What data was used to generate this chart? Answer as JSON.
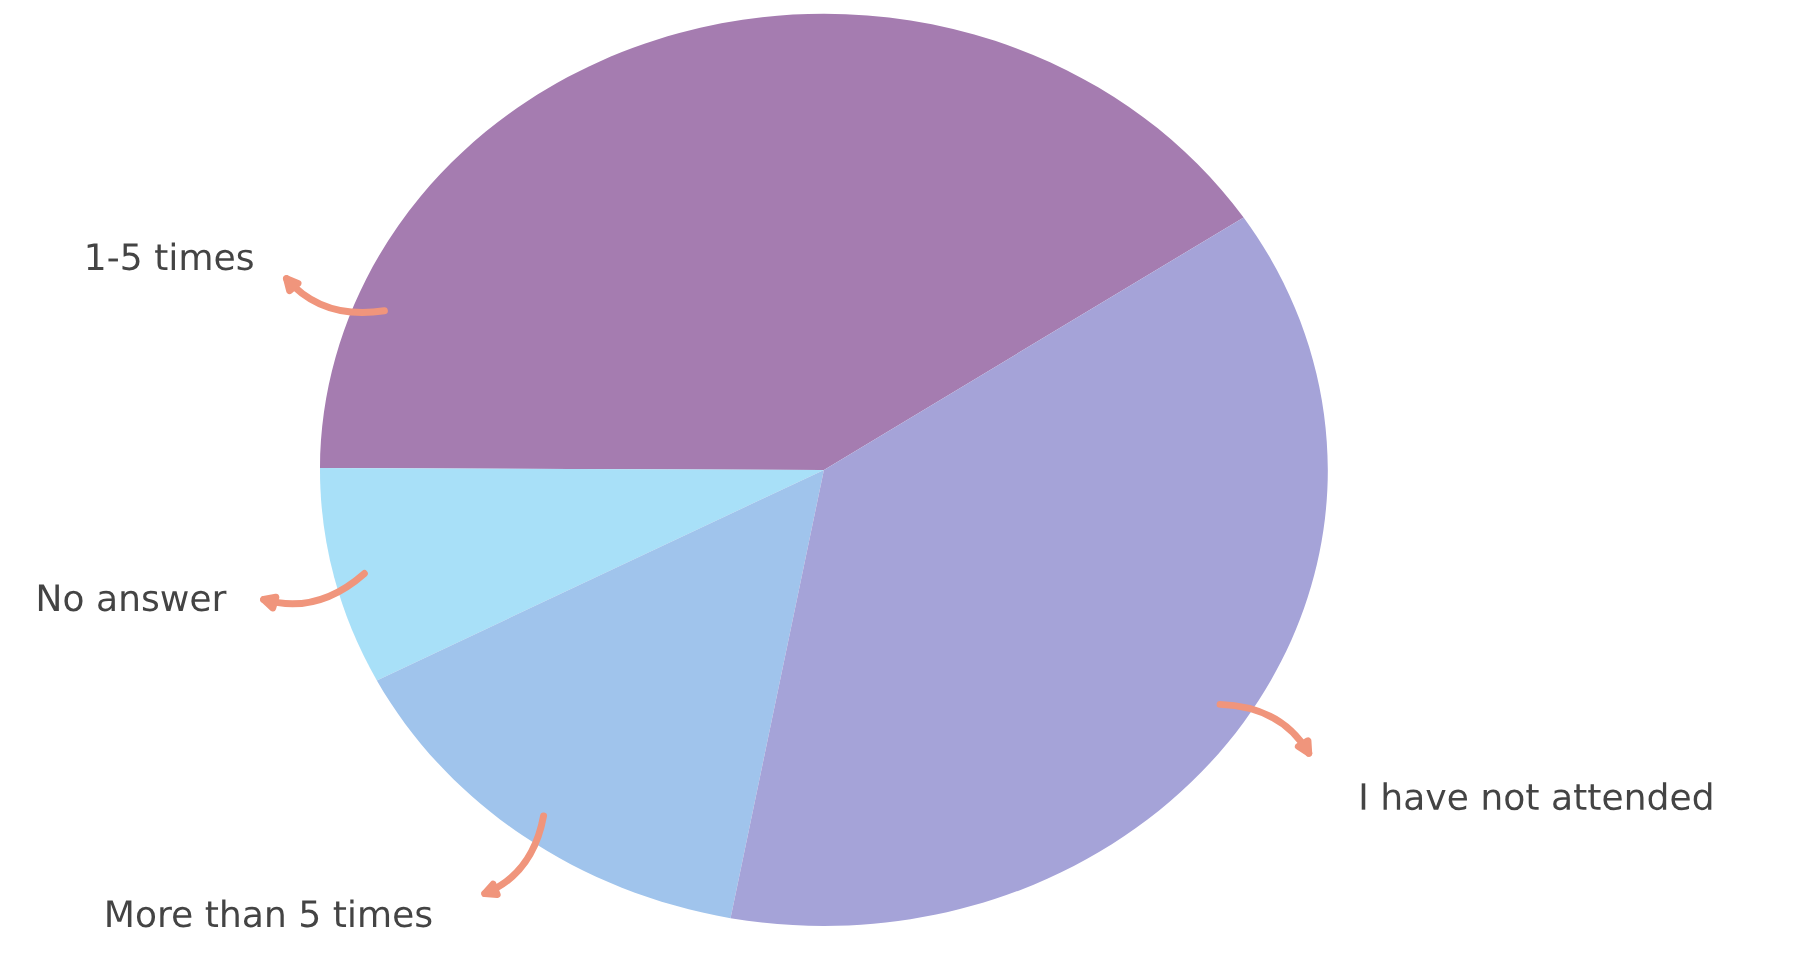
{
  "chart_data": {
    "type": "pie",
    "categories": [
      "1-5 times",
      "No answer",
      "More than 5 times",
      "I have not attended"
    ],
    "values": [
      40.6,
      7.7,
      14.4,
      37.3
    ],
    "colors": [
      "#a57cb0",
      "#a8e0f8",
      "#a0c4ec",
      "#a5a3d8"
    ],
    "legend": false
  }
}
